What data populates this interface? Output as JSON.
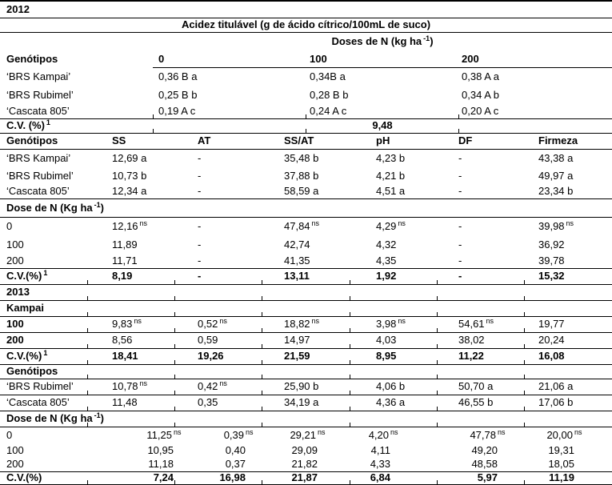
{
  "colors": {
    "text": "#000000",
    "background": "#ffffff",
    "rule": "#000000"
  },
  "table": {
    "rows": [
      {
        "kind": "year-label",
        "cells": [
          "2012"
        ]
      },
      {
        "kind": "section-title",
        "cells": [
          "Acidez titulável (g de ácido cítrico/100mL de suco)"
        ]
      },
      {
        "kind": "span-header",
        "cells": [
          "",
          "Doses de N (kg ha^{-1})"
        ]
      },
      {
        "kind": "column-header",
        "cells": [
          "Genótipos",
          "0",
          "100",
          "200"
        ]
      },
      {
        "kind": "data",
        "cells": [
          "‘BRS Kampai’",
          "0,36 B a",
          "0,34B a",
          "0,38 A a"
        ]
      },
      {
        "kind": "data",
        "cells": [
          "‘BRS Rubimel’",
          "0,25 B b",
          "0,28 B b",
          "0,34 A b"
        ]
      },
      {
        "kind": "data",
        "cells": [
          "‘Cascata 805’",
          "0,19 A c",
          "0,24 A c",
          "0,20 A c"
        ]
      },
      {
        "kind": "cv",
        "cells": [
          "C.V. (%)^{1}",
          "9,48"
        ]
      },
      {
        "kind": "column-header",
        "cells": [
          "Genótipos",
          "SS",
          "AT",
          "SS/AT",
          "pH",
          "DF",
          "Firmeza"
        ]
      },
      {
        "kind": "data",
        "cells": [
          "‘BRS Kampai’",
          "12,69 a",
          "-",
          "35,48 b",
          "4,23 b",
          "-",
          "43,38 a"
        ]
      },
      {
        "kind": "data",
        "cells": [
          "‘BRS Rubimel’",
          "10,73 b",
          "-",
          "37,88 b",
          "4,21 b",
          "-",
          "49,97 a"
        ]
      },
      {
        "kind": "data",
        "cells": [
          "‘Cascata 805’",
          "12,34 a",
          "-",
          "58,59 a",
          "4,51 a",
          "-",
          "23,34 b"
        ]
      },
      {
        "kind": "section-label",
        "cells": [
          "Dose de N (Kg ha^{-1})"
        ]
      },
      {
        "kind": "data",
        "cells": [
          "0",
          "12,16^{ns}",
          "-",
          "47,84^{ns}",
          "4,29^{ns}",
          "-",
          "39,98^{ns}"
        ]
      },
      {
        "kind": "data",
        "cells": [
          "100",
          "11,89",
          "-",
          "42,74",
          "4,32",
          "-",
          "36,92"
        ]
      },
      {
        "kind": "data",
        "cells": [
          "200",
          "11,71",
          "-",
          "41,35",
          "4,35",
          "-",
          "39,78"
        ]
      },
      {
        "kind": "cv",
        "cells": [
          "C.V.(%)^{1}",
          "8,19",
          "-",
          "13,11",
          "1,92",
          "-",
          "15,32"
        ]
      },
      {
        "kind": "year-label",
        "cells": [
          "2013"
        ]
      },
      {
        "kind": "section-label",
        "cells": [
          "Kampai"
        ]
      },
      {
        "kind": "data",
        "cells": [
          "100",
          "9,83^{ns}",
          "0,52^{ns}",
          "18,82^{ns}",
          "3,98^{ns}",
          "54,61^{ns}",
          "19,77"
        ]
      },
      {
        "kind": "data",
        "cells": [
          "200",
          "8,56",
          "0,59",
          "14,97",
          "4,03",
          "38,02",
          "20,24"
        ]
      },
      {
        "kind": "cv",
        "cells": [
          "C.V.(%)^{1}",
          "18,41",
          "19,26",
          "21,59",
          "8,95",
          "11,22",
          "16,08"
        ]
      },
      {
        "kind": "section-label",
        "cells": [
          "Genótipos"
        ]
      },
      {
        "kind": "data",
        "cells": [
          "‘BRS Rubimel’",
          "10,78^{ns}",
          "0,42^{ns}",
          "25,90 b",
          "4,06 b",
          "50,70 a",
          "21,06 a"
        ]
      },
      {
        "kind": "data",
        "cells": [
          "‘Cascata 805’",
          "11,48",
          "0,35",
          "34,19 a",
          "4,36 a",
          "46,55 b",
          "17,06 b"
        ]
      },
      {
        "kind": "section-label",
        "cells": [
          "Dose de N (Kg ha^{-1})"
        ]
      },
      {
        "kind": "data",
        "cells": [
          "0",
          "11,25^{ns}",
          "0,39^{ns}",
          "29,21^{ns}",
          "4,20^{ns}",
          "47,78^{ns}",
          "20,00^{ns}"
        ]
      },
      {
        "kind": "data",
        "cells": [
          "100",
          "10,95",
          "0,40",
          "29,09",
          "4,11",
          "49,20",
          "19,31"
        ]
      },
      {
        "kind": "data",
        "cells": [
          "200",
          "11,18",
          "0,37",
          "21,82",
          "4,33",
          "48,58",
          "18,05"
        ]
      },
      {
        "kind": "cv",
        "cells": [
          "C.V.(%)",
          "7,24",
          "16,98",
          "21,87",
          "6,84",
          "5,97",
          "11,19"
        ]
      }
    ]
  }
}
